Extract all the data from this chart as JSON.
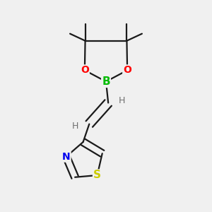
{
  "bg_color": "#f0f0f0",
  "bond_color": "#1a1a1a",
  "bond_width": 1.6,
  "atom_colors": {
    "B": "#00bb00",
    "O": "#ff0000",
    "N": "#0000ee",
    "S": "#cccc00",
    "C": "#1a1a1a",
    "H": "#707070"
  },
  "figsize": [
    3.0,
    3.0
  ],
  "dpi": 100,
  "xlim": [
    0.15,
    0.85
  ],
  "ylim": [
    0.03,
    0.97
  ]
}
